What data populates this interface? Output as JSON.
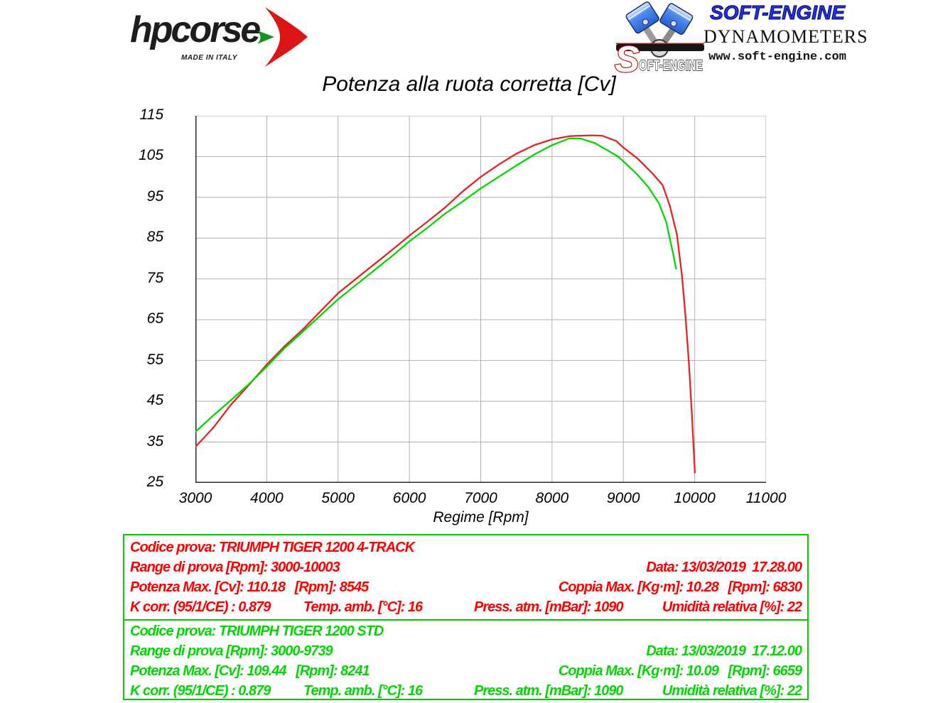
{
  "header": {
    "hpcorse": {
      "brand": "hpcorse",
      "tagline": "MADE IN ITALY"
    },
    "softengine": {
      "title": "SOFT-ENGINE",
      "subtitle": "DYNAMOMETERS",
      "website": "www.soft-engine.com",
      "emblem_initial": "S",
      "emblem_rest": "OFT-ENGINE"
    }
  },
  "chart_data": {
    "type": "line",
    "title": "Potenza alla ruota corretta [Cv]",
    "xlabel": "Regime [Rpm]",
    "ylabel": "",
    "xlim": [
      3000,
      11000
    ],
    "ylim": [
      25,
      115
    ],
    "xticks": [
      3000,
      4000,
      5000,
      6000,
      7000,
      8000,
      9000,
      10000,
      11000
    ],
    "yticks": [
      25,
      35,
      45,
      55,
      65,
      75,
      85,
      95,
      105,
      115
    ],
    "grid": true,
    "legend": "none",
    "series": [
      {
        "name": "TRIUMPH TIGER 1200 4-TRACK",
        "color": "#e62222",
        "x": [
          3000,
          3250,
          3500,
          3750,
          4000,
          4250,
          4500,
          4750,
          5000,
          5250,
          5500,
          5750,
          6000,
          6250,
          6500,
          6750,
          7000,
          7250,
          7500,
          7750,
          8000,
          8250,
          8545,
          8700,
          8900,
          9000,
          9200,
          9400,
          9550,
          9650,
          9750,
          9820,
          9870,
          9920,
          9960,
          10003
        ],
        "y": [
          33.8,
          38.5,
          44.2,
          49.0,
          54.0,
          58.5,
          62.5,
          67.0,
          71.5,
          75.0,
          78.5,
          82.0,
          85.6,
          89.0,
          92.5,
          96.5,
          100.0,
          103.0,
          105.7,
          107.8,
          109.2,
          110.0,
          110.2,
          110.1,
          108.8,
          107.2,
          104.5,
          101.0,
          98.0,
          93.0,
          86.0,
          76.0,
          66.0,
          54.0,
          42.0,
          27.5
        ]
      },
      {
        "name": "TRIUMPH TIGER 1200 STD",
        "color": "#00d800",
        "x": [
          3000,
          3250,
          3500,
          3750,
          4000,
          4250,
          4500,
          4750,
          5000,
          5250,
          5500,
          5750,
          6000,
          6250,
          6500,
          6750,
          7000,
          7250,
          7500,
          7750,
          8000,
          8241,
          8400,
          8600,
          8800,
          8925,
          9050,
          9200,
          9350,
          9500,
          9600,
          9700,
          9739
        ],
        "y": [
          37.5,
          41.5,
          45.3,
          49.2,
          53.5,
          58.0,
          62.0,
          66.0,
          70.0,
          73.5,
          77.0,
          80.5,
          84.2,
          87.5,
          91.0,
          94.0,
          97.2,
          100.0,
          102.8,
          105.5,
          107.8,
          109.44,
          109.4,
          108.3,
          106.3,
          105.0,
          103.0,
          100.5,
          97.5,
          93.5,
          89.0,
          81.0,
          77.5
        ]
      }
    ]
  },
  "info_panels": [
    {
      "text_color": "#ff0000",
      "codice": "Codice prova: TRIUMPH TIGER 1200 4-TRACK",
      "range": "Range di prova [Rpm]: 3000-10003",
      "data": "Data: 13/03/2019  17.28.00",
      "potenza": "Potenza Max. [Cv]: 110.18   [Rpm]: 8545",
      "coppia": "Coppia Max. [Kg·m]: 10.28   [Rpm]: 6830",
      "kcorr": "K corr. (95/1/CE) : 0.879",
      "temp": "Temp. amb. [°C]: 16",
      "press": "Press. atm. [mBar]: 1090",
      "umidita": "Umidità relativa [%]: 22"
    },
    {
      "text_color": "#00d800",
      "codice": "Codice prova: TRIUMPH TIGER 1200 STD",
      "range": "Range di prova [Rpm]: 3000-9739",
      "data": "Data: 13/03/2019  17.12.00",
      "potenza": "Potenza Max. [Cv]: 109.44   [Rpm]: 8241",
      "coppia": "Coppia Max. [Kg·m]: 10.09   [Rpm]: 6659",
      "kcorr": "K corr. (95/1/CE) : 0.879",
      "temp": "Temp. amb. [°C]: 16",
      "press": "Press. atm. [mBar]: 1090",
      "umidita": "Umidità relativa [%]: 22"
    }
  ],
  "colors": {
    "box_border": "#00cc00",
    "grid": "#b2b2b2",
    "axis": "#2b2b2b"
  }
}
